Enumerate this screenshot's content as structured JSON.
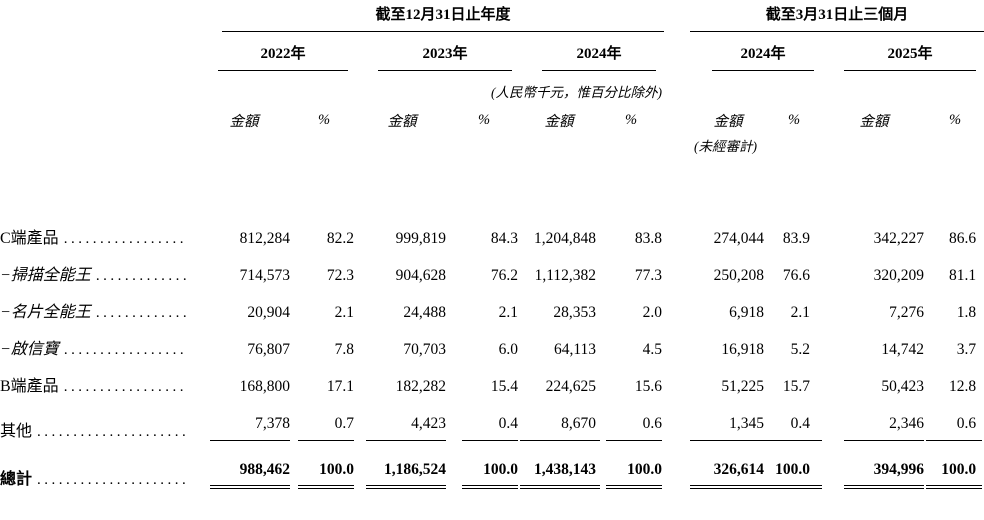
{
  "colors": {
    "background": "#ffffff",
    "text": "#000000",
    "rule": "#000000"
  },
  "table": {
    "col_groups": [
      {
        "title": "截至12月31日止年度",
        "years": [
          "2022年",
          "2023年",
          "2024年"
        ]
      },
      {
        "title": "截至3月31日止三個月",
        "years": [
          "2024年",
          "2025年"
        ]
      }
    ],
    "unit_note": "(人民幣千元，惟百分比除外)",
    "unaudited_note": "(未經審計)",
    "amount_label": "金額",
    "percent_label": "%",
    "columns": [
      "fy2022-amount",
      "fy2022-pct",
      "fy2023-amount",
      "fy2023-pct",
      "fy2024-amount",
      "fy2024-pct",
      "q1-2024-amount",
      "q1-2024-pct",
      "q1-2025-amount",
      "q1-2025-pct"
    ],
    "rows": [
      {
        "name": "c-side-products",
        "label": "C端產品",
        "label_style": "regular",
        "rule_below": false,
        "is_total": false,
        "values": [
          "812,284",
          "82.2",
          "999,819",
          "84.3",
          "1,204,848",
          "83.8",
          "274,044",
          "83.9",
          "342,227",
          "86.6"
        ]
      },
      {
        "name": "camscanner",
        "label": "−掃描全能王",
        "label_style": "italic",
        "rule_below": false,
        "is_total": false,
        "values": [
          "714,573",
          "72.3",
          "904,628",
          "76.2",
          "1,112,382",
          "77.3",
          "250,208",
          "76.6",
          "320,209",
          "81.1"
        ]
      },
      {
        "name": "camcard",
        "label": "−名片全能王",
        "label_style": "italic",
        "rule_below": false,
        "is_total": false,
        "values": [
          "20,904",
          "2.1",
          "24,488",
          "2.1",
          "28,353",
          "2.0",
          "6,918",
          "2.1",
          "7,276",
          "1.8"
        ]
      },
      {
        "name": "qixinbao",
        "label": "−啟信寶",
        "label_style": "italic",
        "rule_below": false,
        "is_total": false,
        "values": [
          "76,807",
          "7.8",
          "70,703",
          "6.0",
          "64,113",
          "4.5",
          "16,918",
          "5.2",
          "14,742",
          "3.7"
        ]
      },
      {
        "name": "b-side-products",
        "label": "B端產品",
        "label_style": "regular",
        "rule_below": false,
        "is_total": false,
        "values": [
          "168,800",
          "17.1",
          "182,282",
          "15.4",
          "224,625",
          "15.6",
          "51,225",
          "15.7",
          "50,423",
          "12.8"
        ]
      },
      {
        "name": "others",
        "label": "其他",
        "label_style": "regular",
        "rule_below": true,
        "is_total": false,
        "values": [
          "7,378",
          "0.7",
          "4,423",
          "0.4",
          "8,670",
          "0.6",
          "1,345",
          "0.4",
          "2,346",
          "0.6"
        ]
      },
      {
        "name": "total",
        "label": "總計",
        "label_style": "bold",
        "rule_below": false,
        "is_total": true,
        "values": [
          "988,462",
          "100.0",
          "1,186,524",
          "100.0",
          "1,438,143",
          "100.0",
          "326,614",
          "100.0",
          "394,996",
          "100.0"
        ]
      }
    ]
  }
}
